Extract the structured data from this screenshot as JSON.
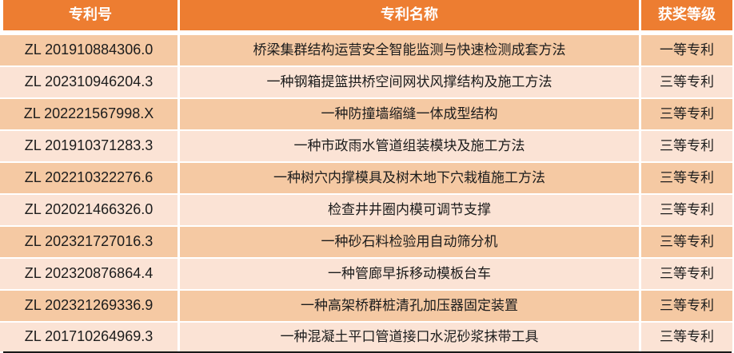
{
  "table": {
    "headers": {
      "patent_no": "专利号",
      "patent_name": "专利名称",
      "award": "获奖等级"
    },
    "rows": [
      {
        "no": "ZL 201910884306.0",
        "name": "桥梁集群结构运营安全智能监测与快速检测成套方法",
        "award": "一等专利"
      },
      {
        "no": "ZL 202310946204.3",
        "name": "一种钢箱提篮拱桥空间网状风撑结构及施工方法",
        "award": "三等专利"
      },
      {
        "no": "ZL 202221567998.X",
        "name": "一种防撞墙缩缝一体成型结构",
        "award": "三等专利"
      },
      {
        "no": "ZL 201910371283.3",
        "name": "一种市政雨水管道组装模块及施工方法",
        "award": "三等专利"
      },
      {
        "no": "ZL 202210322276.6",
        "name": "一种树穴内撑模具及树木地下穴栽植施工方法",
        "award": "三等专利"
      },
      {
        "no": "ZL 202021466326.0",
        "name": "检查井井圈内模可调节支撑",
        "award": "三等专利"
      },
      {
        "no": "ZL 202321727016.3",
        "name": "一种砂石料检验用自动筛分机",
        "award": "三等专利"
      },
      {
        "no": "ZL 202320876864.4",
        "name": "一种管廊早拆移动模板台车",
        "award": "三等专利"
      },
      {
        "no": "ZL 202321269336.9",
        "name": "一种高架桥群桩清孔加压器固定装置",
        "award": "三等专利"
      },
      {
        "no": "ZL 201710264969.3",
        "name": "一种混凝土平口管道接口水泥砂浆抹带工具",
        "award": "三等专利"
      }
    ]
  },
  "colors": {
    "header_bg": "#ED7D31",
    "header_text": "#FFFFFF",
    "row_dark": "#F5C9A3",
    "row_light": "#FBE3D5",
    "body_text": "#1C1C1C",
    "bottom_border": "#181818"
  }
}
